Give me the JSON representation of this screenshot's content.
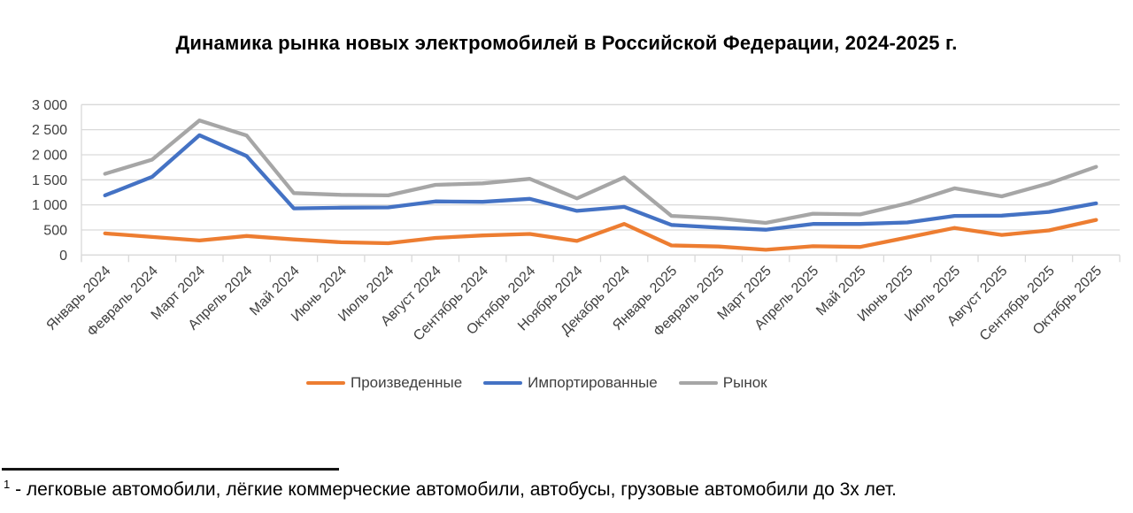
{
  "title": "Динамика рынка новых электромобилей в Российской Федерации, 2024-2025 г.",
  "footnote": {
    "marker": "1",
    "text": " - легковые автомобили, лёгкие коммерческие автомобили, автобусы, грузовые автомобили до 3х лет."
  },
  "colors": {
    "produced": "#ED7D31",
    "imported": "#4472C4",
    "market": "#A6A6A6",
    "gridline": "#D9D9D9",
    "axis_label": "#404040",
    "title_text": "#000000"
  },
  "chart_data": {
    "type": "line",
    "title": "Динамика рынка новых электромобилей в Российской Федерации, 2024-2025 г.",
    "xlabel": "",
    "ylabel": "",
    "grid": true,
    "legend_position": "bottom",
    "ylim": [
      0,
      3000
    ],
    "ytick_step": 500,
    "ytick_labels": [
      "0",
      "500",
      "1 000",
      "1 500",
      "2 000",
      "2 500",
      "3 000"
    ],
    "categories": [
      "Январь 2024",
      "Февраль 2024",
      "Март 2024",
      "Апрель 2024",
      "Май 2024",
      "Июнь 2024",
      "Июль 2024",
      "Август 2024",
      "Сентябрь 2024",
      "Октябрь 2024",
      "Ноябрь 2024",
      "Декабрь 2024",
      "Январь 2025",
      "Февраль 2025",
      "Март 2025",
      "Апрель 2025",
      "Май 2025",
      "Июнь 2025",
      "Июль 2025",
      "Август 2025",
      "Сентябрь 2025",
      "Октябрь 2025"
    ],
    "series": [
      {
        "name": "Произведенные",
        "color": "#ED7D31",
        "values": [
          430,
          360,
          290,
          380,
          310,
          255,
          235,
          340,
          390,
          420,
          280,
          620,
          190,
          170,
          105,
          175,
          160,
          350,
          540,
          400,
          490,
          700
        ]
      },
      {
        "name": "Импортированные",
        "color": "#4472C4",
        "values": [
          1190,
          1560,
          2390,
          1975,
          930,
          945,
          950,
          1070,
          1060,
          1120,
          880,
          960,
          600,
          545,
          505,
          620,
          620,
          650,
          780,
          785,
          860,
          1030
        ]
      },
      {
        "name": "Рынок",
        "color": "#A6A6A6",
        "values": [
          1620,
          1905,
          2685,
          2385,
          1235,
          1200,
          1190,
          1400,
          1430,
          1520,
          1130,
          1550,
          780,
          730,
          640,
          825,
          810,
          1030,
          1330,
          1170,
          1430,
          1760
        ]
      }
    ]
  }
}
